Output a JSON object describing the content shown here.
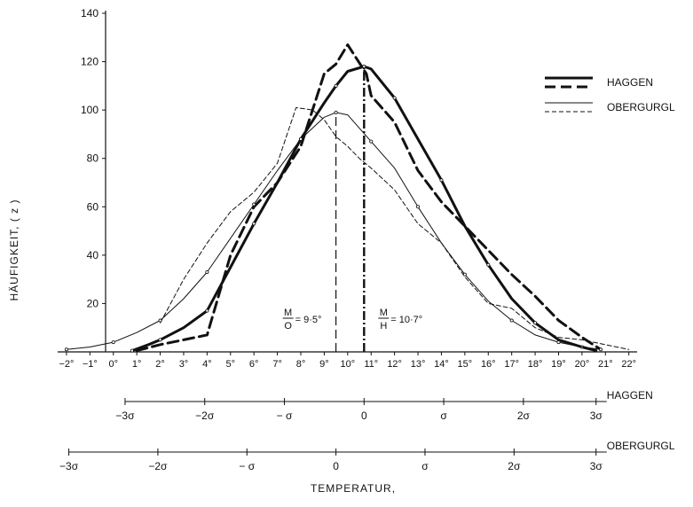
{
  "chart_data": {
    "type": "line",
    "title": "",
    "xlabel": "TEMPERATUR,",
    "ylabel": "HÄUFIGKEIT, ( z )",
    "xlim": [
      -2.3,
      22.2
    ],
    "ylim": [
      0,
      140
    ],
    "x_tick_values": [
      -2,
      -1,
      0,
      1,
      2,
      3,
      4,
      5,
      6,
      7,
      8,
      9,
      10,
      11,
      12,
      13,
      14,
      15,
      16,
      17,
      18,
      19,
      20,
      21,
      22
    ],
    "x_tick_labels": [
      "−2°",
      "−1°",
      "0°",
      "1°",
      "2°",
      "3°",
      "4°",
      "5°",
      "6°",
      "7°",
      "8°",
      "9°",
      "10°",
      "11°",
      "12°",
      "13°",
      "14°",
      "15°",
      "16°",
      "17°",
      "18°",
      "19°",
      "20°",
      "21°",
      "22°"
    ],
    "y_tick_values": [
      20,
      40,
      60,
      80,
      100,
      120,
      140
    ],
    "y_tick_labels": [
      "20",
      "40",
      "60",
      "80",
      "100",
      "120",
      "140"
    ],
    "grid": false,
    "legend": {
      "position": "top-right",
      "group_labels": [
        "HAGGEN",
        "OBERGURGL"
      ]
    },
    "series": [
      {
        "group": "HAGGEN",
        "kind": "empirical",
        "stroke": "dashed-thick",
        "color": "#111111",
        "x": [
          1.0,
          2.0,
          3.0,
          4.0,
          5.0,
          6.0,
          7.0,
          8.0,
          9.0,
          9.5,
          10.0,
          10.8,
          11.0,
          12.0,
          13.0,
          14.0,
          15.0,
          16.0,
          17.0,
          18.0,
          19.0,
          20.0,
          20.8
        ],
        "y": [
          0.5,
          3,
          5,
          7,
          40,
          60,
          70,
          85,
          115,
          119,
          127,
          115,
          106,
          95,
          75,
          62,
          52,
          42,
          32,
          23,
          13,
          6,
          1
        ]
      },
      {
        "group": "HAGGEN",
        "kind": "normal-curve",
        "stroke": "solid-thick",
        "color": "#111111",
        "x": [
          0.8,
          1.5,
          2.0,
          3.0,
          4.0,
          5.0,
          6.0,
          7.0,
          8.0,
          9.0,
          9.5,
          10.0,
          10.7,
          11.0,
          12.0,
          13.0,
          14.0,
          15.0,
          16.0,
          17.0,
          18.0,
          19.0,
          20.0,
          20.6
        ],
        "y": [
          0.5,
          3,
          5,
          10,
          17,
          35,
          53,
          70,
          88,
          103,
          110,
          116,
          118,
          117,
          105,
          88,
          71,
          52,
          36,
          22,
          12,
          5,
          2,
          0.5
        ]
      },
      {
        "group": "OBERGURGL",
        "kind": "empirical",
        "stroke": "dashed-thin",
        "color": "#111111",
        "x": [
          2.0,
          3.0,
          4.0,
          5.0,
          6.0,
          7.0,
          7.8,
          8.5,
          9.0,
          9.5,
          10.0,
          10.5,
          11.0,
          12.0,
          13.0,
          14.0,
          15.0,
          16.0,
          17.0,
          18.0,
          19.0,
          20.0,
          21.0,
          22.0
        ],
        "y": [
          12,
          30,
          45,
          58,
          66,
          78,
          101,
          100,
          96,
          89,
          85,
          80,
          76,
          67,
          53,
          45,
          31,
          20,
          18,
          10,
          6,
          5,
          3,
          1
        ]
      },
      {
        "group": "OBERGURGL",
        "kind": "normal-curve",
        "stroke": "solid-thin",
        "color": "#111111",
        "x": [
          -2.0,
          -1.0,
          0.0,
          1.0,
          2.0,
          3.0,
          4.0,
          5.0,
          6.0,
          7.0,
          8.0,
          9.0,
          9.5,
          10.0,
          11.0,
          12.0,
          13.0,
          14.0,
          15.0,
          16.0,
          17.0,
          18.0,
          19.0,
          20.0,
          20.8
        ],
        "y": [
          1,
          2,
          4,
          8,
          13,
          22,
          33,
          47,
          61,
          75,
          88,
          97,
          99,
          98,
          87,
          76,
          60,
          45,
          32,
          21,
          13,
          7,
          4,
          2,
          1
        ]
      }
    ],
    "reference_lines": [
      {
        "x": 9.5,
        "style": "dash-long",
        "label_top": "M",
        "label_bottom": "O",
        "value_text": "= 9·5°"
      },
      {
        "x": 10.7,
        "style": "dash-dot-thick",
        "label_top": "M",
        "label_bottom": "H",
        "value_text": "= 10·7°"
      }
    ],
    "sigma_axes": [
      {
        "name": "HAGGEN",
        "range": [
          0.5,
          20.6
        ],
        "ticks": [
          {
            "x": 0.5,
            "label": "−3σ"
          },
          {
            "x": 3.9,
            "label": "−2σ"
          },
          {
            "x": 7.3,
            "label": "− σ"
          },
          {
            "x": 10.7,
            "label": "0"
          },
          {
            "x": 14.1,
            "label": "σ"
          },
          {
            "x": 17.5,
            "label": "2σ"
          },
          {
            "x": 20.6,
            "label": "3σ"
          }
        ]
      },
      {
        "name": "OBERGURGL",
        "range": [
          -1.9,
          20.6
        ],
        "ticks": [
          {
            "x": -1.9,
            "label": "−3σ"
          },
          {
            "x": 1.9,
            "label": "−2σ"
          },
          {
            "x": 5.7,
            "label": "− σ"
          },
          {
            "x": 9.5,
            "label": "0"
          },
          {
            "x": 13.3,
            "label": "σ"
          },
          {
            "x": 17.1,
            "label": "2σ"
          },
          {
            "x": 20.6,
            "label": "3σ"
          }
        ]
      }
    ]
  }
}
